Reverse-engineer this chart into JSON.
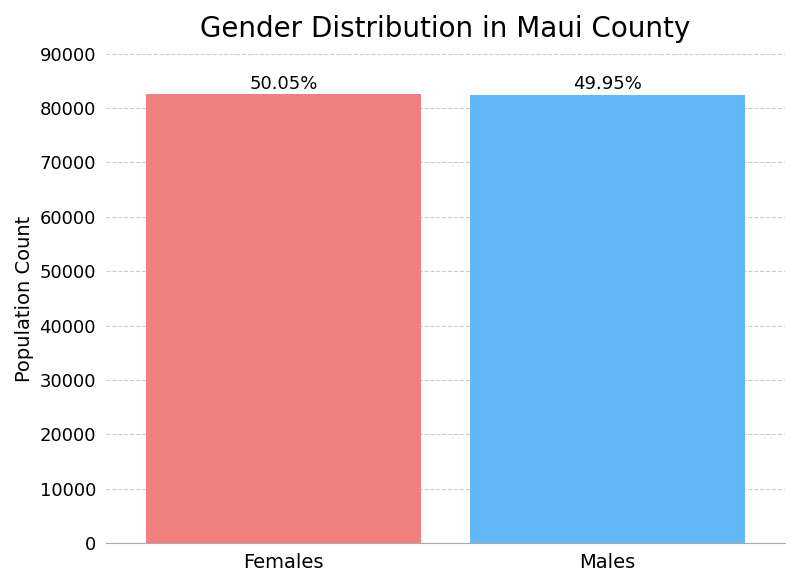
{
  "title": "Gender Distribution in Maui County",
  "categories": [
    "Females",
    "Males"
  ],
  "values": [
    82500,
    82420
  ],
  "percentages": [
    "50.05%",
    "49.95%"
  ],
  "bar_colors": [
    "#F08080",
    "#64B8F5"
  ],
  "ylabel": "Population Count",
  "ylim": [
    0,
    90000
  ],
  "yticks": [
    0,
    10000,
    20000,
    30000,
    40000,
    50000,
    60000,
    70000,
    80000,
    90000
  ],
  "title_fontsize": 20,
  "label_fontsize": 14,
  "tick_fontsize": 13,
  "annotation_fontsize": 13,
  "background_color": "#ffffff",
  "grid_color": "#cccccc",
  "bar_width": 0.85
}
